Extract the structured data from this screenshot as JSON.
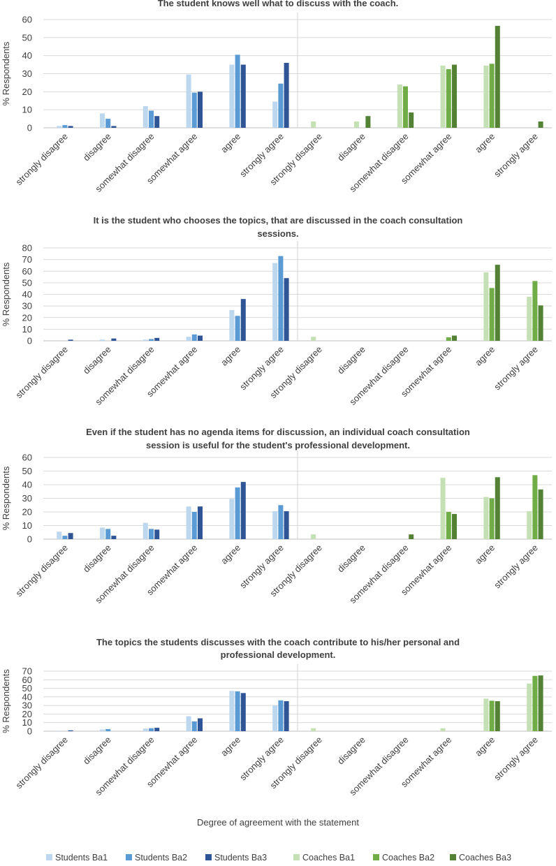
{
  "colors": {
    "Students Ba1": "#bdd7ee",
    "Students Ba2": "#5b9bd5",
    "Students Ba3": "#2f5597",
    "Coaches Ba1": "#c5e0b4",
    "Coaches Ba2": "#70ad47",
    "Coaches Ba3": "#548235",
    "grid": "#d9d9d9",
    "divider": "#d0d0d0",
    "axis": "#bfbfbf",
    "text": "#404040"
  },
  "chart_data": [
    {
      "type": "bar",
      "title": [
        "The student knows well what to discuss with the coach."
      ],
      "ylabel": "% Respondents",
      "xlabel": "",
      "ylim": [
        0,
        60
      ],
      "yticks": [
        0,
        10,
        20,
        30,
        40,
        50,
        60
      ],
      "categories": [
        "strongly disagree",
        "disagree",
        "somewhat disagree",
        "somewhat agree",
        "agree",
        "strongly agree"
      ],
      "groups": [
        "Students",
        "Coaches"
      ],
      "series": [
        {
          "name": "Students Ba1",
          "group": "Students",
          "values": [
            1,
            8,
            12,
            29.5,
            35,
            14.5
          ]
        },
        {
          "name": "Students Ba2",
          "group": "Students",
          "values": [
            1.5,
            5,
            9.5,
            19.5,
            40.5,
            24.5
          ]
        },
        {
          "name": "Students Ba3",
          "group": "Students",
          "values": [
            1,
            1,
            6.5,
            20,
            35,
            36
          ]
        },
        {
          "name": "Coaches Ba1",
          "group": "Coaches",
          "values": [
            3.5,
            3.5,
            24,
            34.5,
            34.5,
            0
          ]
        },
        {
          "name": "Coaches Ba2",
          "group": "Coaches",
          "values": [
            0,
            0,
            23,
            32.5,
            35.5,
            0
          ]
        },
        {
          "name": "Coaches Ba3",
          "group": "Coaches",
          "values": [
            0,
            6.5,
            8.5,
            35,
            56.5,
            3.5
          ]
        }
      ]
    },
    {
      "type": "bar",
      "title": [
        "It is the student who chooses the topics, that are discussed in the coach consultation",
        "sessions."
      ],
      "ylabel": "% Respondents",
      "xlabel": "",
      "ylim": [
        0,
        80
      ],
      "yticks": [
        0,
        10,
        20,
        30,
        40,
        50,
        60,
        70,
        80
      ],
      "categories": [
        "strongly disagree",
        "disagree",
        "somewhat disagree",
        "somewhat agree",
        "agree",
        "strongly agree"
      ],
      "groups": [
        "Students",
        "Coaches"
      ],
      "series": [
        {
          "name": "Students Ba1",
          "group": "Students",
          "values": [
            0,
            1,
            1,
            3.5,
            26.5,
            67
          ]
        },
        {
          "name": "Students Ba2",
          "group": "Students",
          "values": [
            0,
            0,
            1.5,
            5.5,
            21.5,
            73
          ]
        },
        {
          "name": "Students Ba3",
          "group": "Students",
          "values": [
            1,
            2,
            2.5,
            4.5,
            36,
            54
          ]
        },
        {
          "name": "Coaches Ba1",
          "group": "Coaches",
          "values": [
            3.5,
            0,
            0,
            0,
            59,
            38
          ]
        },
        {
          "name": "Coaches Ba2",
          "group": "Coaches",
          "values": [
            0,
            0,
            0,
            3,
            45.5,
            51.5
          ]
        },
        {
          "name": "Coaches Ba3",
          "group": "Coaches",
          "values": [
            0,
            0,
            0,
            4.5,
            65.5,
            30.5
          ]
        }
      ]
    },
    {
      "type": "bar",
      "title": [
        "Even if the student has no agenda items for discussion, an individual coach consultation",
        "session is useful for the student's professional development."
      ],
      "ylabel": "% Respondents",
      "xlabel": "",
      "ylim": [
        0,
        60
      ],
      "yticks": [
        0,
        10,
        20,
        30,
        40,
        50,
        60
      ],
      "categories": [
        "strongly disagree",
        "disagree",
        "somewhat disagree",
        "somewhat agree",
        "agree",
        "strongly agree"
      ],
      "groups": [
        "Students",
        "Coaches"
      ],
      "series": [
        {
          "name": "Students Ba1",
          "group": "Students",
          "values": [
            5.5,
            8.5,
            12,
            24,
            29.5,
            20.5
          ]
        },
        {
          "name": "Students Ba2",
          "group": "Students",
          "values": [
            2.5,
            7.5,
            7.5,
            20,
            38,
            25
          ]
        },
        {
          "name": "Students Ba3",
          "group": "Students",
          "values": [
            4.5,
            2.5,
            7,
            24,
            42,
            20.5
          ]
        },
        {
          "name": "Coaches Ba1",
          "group": "Coaches",
          "values": [
            3.5,
            0,
            0,
            45,
            31,
            20.5
          ]
        },
        {
          "name": "Coaches Ba2",
          "group": "Coaches",
          "values": [
            0,
            0,
            0,
            20,
            30,
            47
          ]
        },
        {
          "name": "Coaches Ba3",
          "group": "Coaches",
          "values": [
            0,
            0,
            3.5,
            18.5,
            45.5,
            36.5
          ]
        }
      ]
    },
    {
      "type": "bar",
      "title": [
        "The topics the students discusses with the coach contribute to his/her personal and",
        "professional development."
      ],
      "ylabel": "% Respondents",
      "xlabel": "Degree of agreement with the statement",
      "ylim": [
        0,
        70
      ],
      "yticks": [
        0,
        10,
        20,
        30,
        40,
        50,
        60,
        70
      ],
      "categories": [
        "strongly disagree",
        "disagree",
        "somewhat disagree",
        "somewhat agree",
        "agree",
        "strongly agree"
      ],
      "groups": [
        "Students",
        "Coaches"
      ],
      "series": [
        {
          "name": "Students Ba1",
          "group": "Students",
          "values": [
            0.5,
            2,
            3,
            17.5,
            47,
            30
          ]
        },
        {
          "name": "Students Ba2",
          "group": "Students",
          "values": [
            0,
            2.5,
            3.5,
            11.5,
            46.5,
            36
          ]
        },
        {
          "name": "Students Ba3",
          "group": "Students",
          "values": [
            1,
            0,
            4,
            15,
            44.5,
            35
          ]
        },
        {
          "name": "Coaches Ba1",
          "group": "Coaches",
          "values": [
            3.5,
            0,
            0,
            3.5,
            38,
            55.5
          ]
        },
        {
          "name": "Coaches Ba2",
          "group": "Coaches",
          "values": [
            0,
            0,
            0,
            0,
            35.5,
            64.5
          ]
        },
        {
          "name": "Coaches Ba3",
          "group": "Coaches",
          "values": [
            0,
            0,
            0,
            0,
            35,
            65
          ]
        }
      ]
    }
  ],
  "legend": {
    "position": "bottom",
    "items": [
      "Students Ba1",
      "Students Ba2",
      "Students Ba3",
      "Coaches Ba1",
      "Coaches Ba2",
      "Coaches Ba3"
    ]
  }
}
